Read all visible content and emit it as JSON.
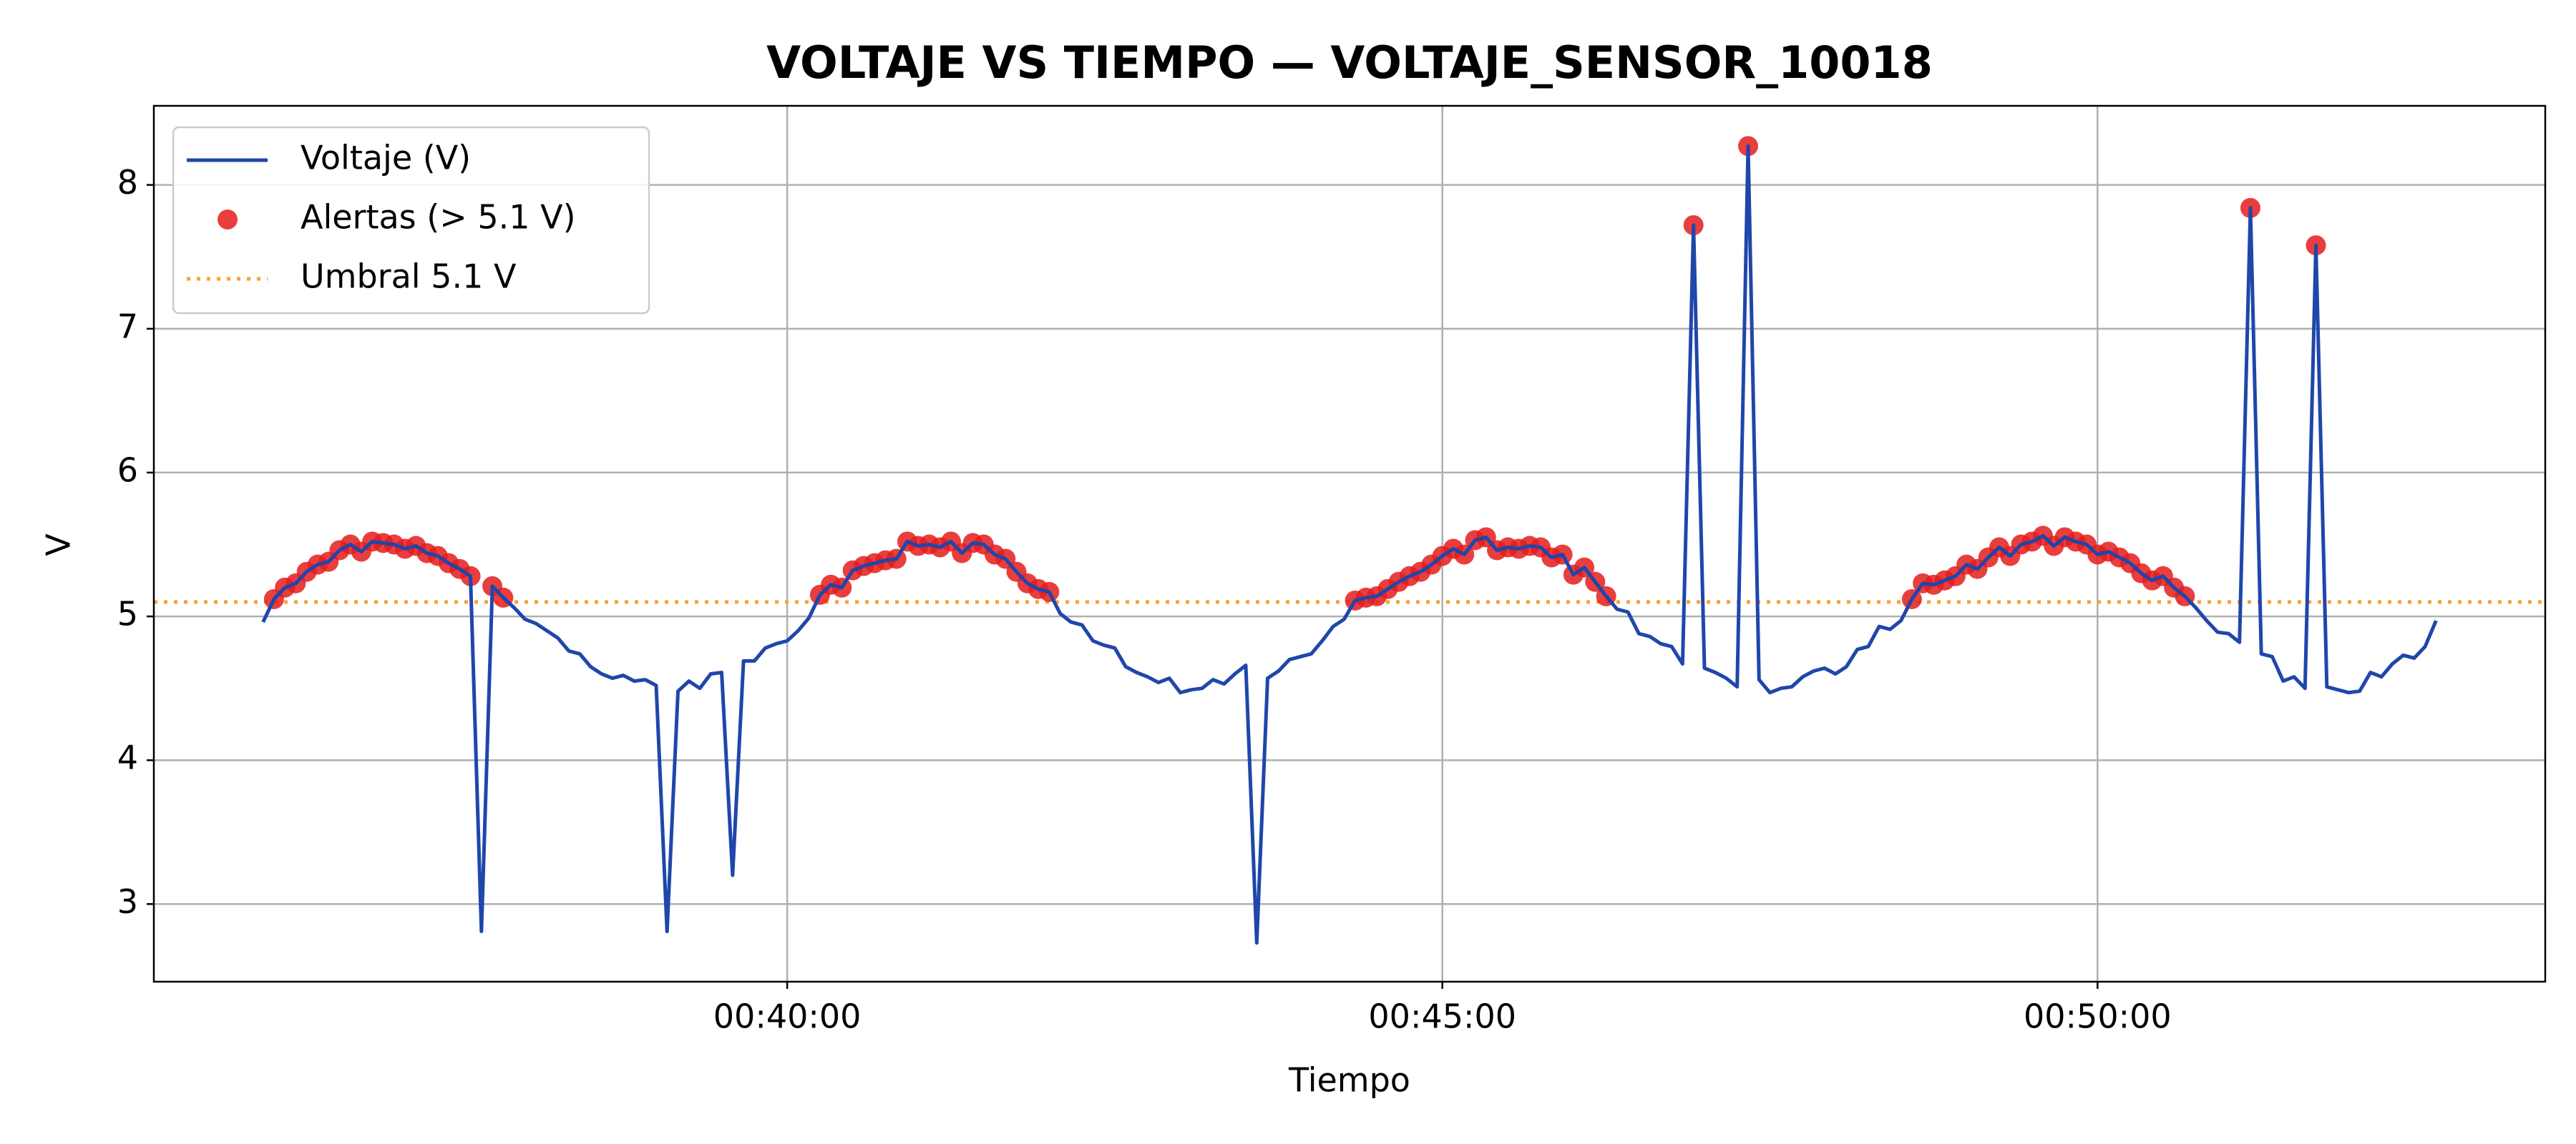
{
  "chart_data": {
    "type": "line",
    "title": "VOLTAJE VS TIEMPO — VOLTAJE_SENSOR_10018",
    "xlabel": "Tiempo",
    "ylabel": "V",
    "x": [
      2160,
      2165,
      2170,
      2175,
      2180,
      2185,
      2190,
      2195,
      2200,
      2205,
      2210,
      2215,
      2220,
      2225,
      2230,
      2235,
      2240,
      2245,
      2250,
      2255,
      2260,
      2265,
      2270,
      2275,
      2280,
      2285,
      2290,
      2295,
      2300,
      2305,
      2310,
      2315,
      2320,
      2325,
      2330,
      2335,
      2340,
      2345,
      2350,
      2355,
      2360,
      2365,
      2370,
      2375,
      2380,
      2385,
      2390,
      2395,
      2400,
      2405,
      2410,
      2415,
      2420,
      2425,
      2430,
      2435,
      2440,
      2445,
      2450,
      2455,
      2460,
      2465,
      2470,
      2475,
      2480,
      2485,
      2490,
      2495,
      2500,
      2505,
      2510,
      2515,
      2520,
      2525,
      2530,
      2535,
      2540,
      2545,
      2550,
      2555,
      2560,
      2565,
      2570,
      2575,
      2580,
      2585,
      2590,
      2595,
      2600,
      2605,
      2610,
      2615,
      2620,
      2625,
      2630,
      2635,
      2640,
      2645,
      2650,
      2655,
      2660,
      2665,
      2670,
      2675,
      2680,
      2685,
      2690,
      2695,
      2700,
      2705,
      2710,
      2715,
      2720,
      2725,
      2730,
      2735,
      2740,
      2745,
      2750,
      2755,
      2760,
      2765,
      2770,
      2775,
      2780,
      2785,
      2790,
      2795,
      2800,
      2805,
      2810,
      2815,
      2820,
      2825,
      2830,
      2835,
      2840,
      2845,
      2850,
      2855,
      2860,
      2865,
      2870,
      2875,
      2880,
      2885,
      2890,
      2895,
      2900,
      2905,
      2910,
      2915,
      2920,
      2925,
      2930,
      2935,
      2940,
      2945,
      2950,
      2955,
      2960,
      2965,
      2970,
      2975,
      2980,
      2985,
      2990,
      2995,
      3000,
      3005,
      3010,
      3015,
      3020,
      3025,
      3030,
      3035,
      3040,
      3045,
      3050,
      3055,
      3060,
      3065,
      3070,
      3075,
      3080,
      3085,
      3090,
      3095,
      3100,
      3105,
      3110,
      3115,
      3120,
      3125,
      3130,
      3135,
      3140,
      3145,
      3150,
      3155
    ],
    "series": [
      {
        "name": "Voltaje (V)",
        "color": "#1f46ab",
        "values": [
          4.96,
          5.12,
          5.2,
          5.23,
          5.31,
          5.36,
          5.38,
          5.46,
          5.5,
          5.45,
          5.52,
          5.51,
          5.5,
          5.47,
          5.49,
          5.44,
          5.42,
          5.37,
          5.33,
          5.28,
          2.81,
          5.21,
          5.13,
          5.06,
          4.98,
          4.95,
          4.9,
          4.85,
          4.76,
          4.74,
          4.65,
          4.6,
          4.57,
          4.59,
          4.55,
          4.56,
          4.52,
          2.81,
          4.48,
          4.55,
          4.5,
          4.6,
          4.61,
          3.2,
          4.69,
          4.69,
          4.78,
          4.81,
          4.83,
          4.9,
          4.99,
          5.15,
          5.22,
          5.2,
          5.32,
          5.35,
          5.37,
          5.39,
          5.4,
          5.52,
          5.49,
          5.5,
          5.48,
          5.52,
          5.44,
          5.51,
          5.5,
          5.43,
          5.4,
          5.31,
          5.23,
          5.19,
          5.17,
          5.02,
          4.96,
          4.94,
          4.83,
          4.8,
          4.78,
          4.65,
          4.61,
          4.58,
          4.54,
          4.57,
          4.47,
          4.49,
          4.5,
          4.56,
          4.53,
          4.6,
          4.66,
          2.73,
          4.57,
          4.62,
          4.7,
          4.72,
          4.74,
          4.83,
          4.93,
          4.98,
          5.11,
          5.13,
          5.14,
          5.19,
          5.24,
          5.28,
          5.31,
          5.36,
          5.42,
          5.47,
          5.43,
          5.53,
          5.55,
          5.46,
          5.48,
          5.47,
          5.49,
          5.48,
          5.41,
          5.43,
          5.29,
          5.34,
          5.24,
          5.14,
          5.05,
          5.03,
          4.88,
          4.86,
          4.81,
          4.79,
          4.67,
          7.72,
          4.64,
          4.61,
          4.57,
          4.51,
          8.27,
          4.56,
          4.47,
          4.5,
          4.51,
          4.58,
          4.62,
          4.64,
          4.6,
          4.65,
          4.77,
          4.79,
          4.93,
          4.91,
          4.97,
          5.12,
          5.23,
          5.22,
          5.25,
          5.28,
          5.36,
          5.33,
          5.41,
          5.48,
          5.42,
          5.5,
          5.52,
          5.56,
          5.49,
          5.55,
          5.52,
          5.5,
          5.43,
          5.45,
          5.41,
          5.37,
          5.3,
          5.25,
          5.28,
          5.2,
          5.14,
          5.06,
          4.97,
          4.89,
          4.88,
          4.82,
          7.84,
          4.74,
          4.72,
          4.55,
          4.58,
          4.5,
          7.58,
          4.51,
          4.49,
          4.47,
          4.48,
          4.61,
          4.58,
          4.67,
          4.73,
          4.71,
          4.79,
          4.97
        ]
      }
    ],
    "alerts": {
      "name": "Alertas (> 5.1 V)",
      "color": "#e51c1c"
    },
    "threshold": {
      "name": "Umbral 5.1 V",
      "value": 5.1,
      "color": "#f7a233"
    },
    "xlim": [
      2110,
      3205
    ],
    "ylim": [
      2.46,
      8.55
    ],
    "xticks": [
      {
        "value": 2400,
        "label": "00:40:00"
      },
      {
        "value": 2700,
        "label": "00:45:00"
      },
      {
        "value": 3000,
        "label": "00:50:00"
      }
    ],
    "yticks": [
      3,
      4,
      5,
      6,
      7,
      8
    ],
    "grid": true,
    "legend": "upper left"
  }
}
